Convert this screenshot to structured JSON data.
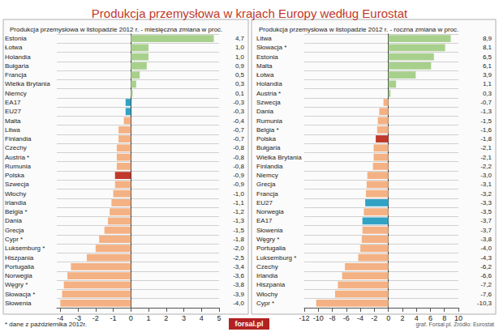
{
  "title": "Produkcja przemysłowa w krajach Europy według Eurostat",
  "annotations": [
    "* dane z października 2012r.",
    "forsal.pl",
    "graf. Forsal.pl. Źródło: Eurostat"
  ],
  "chart_data": [
    {
      "type": "bar",
      "orientation": "horizontal",
      "grid": true,
      "data_labels": true,
      "title": "Produkcja przemysłowa w listopadzie 2012 r. - miesięczna zmiana w proc.",
      "categories": [
        "Estonia",
        "Łotwa",
        "Holandia",
        "Bułgaria",
        "Francja",
        "Wielka Brytania",
        "Niemcy",
        "EA17",
        "EU27",
        "Malta",
        "Litwa",
        "Finlandia",
        "Czechy",
        "Austria *",
        "Rumunia",
        "Polska",
        "Szwecja",
        "Włochy",
        "Irlandia",
        "Belgia *",
        "Dania",
        "Grecja",
        "Cypr *",
        "Luksemburg *",
        "Hiszpania",
        "Portugalia",
        "Norwegia",
        "Węgry *",
        "Słowacja *",
        "Słowenia"
      ],
      "values": [
        4.7,
        1.0,
        1.0,
        0.9,
        0.5,
        0.3,
        0.1,
        -0.3,
        -0.3,
        -0.4,
        -0.7,
        -0.7,
        -0.8,
        -0.8,
        -0.8,
        -0.9,
        -0.9,
        -1.0,
        -1.1,
        -1.2,
        -1.3,
        -1.5,
        -1.8,
        -2.0,
        -2.5,
        -3.4,
        -3.6,
        -3.8,
        -3.9,
        -4.0
      ],
      "value_labels": [
        "4,7",
        "1,0",
        "1,0",
        "0,9",
        "0,5",
        "0,3",
        "0,1",
        "-0,3",
        "-0,3",
        "-0,4",
        "-0,7",
        "-0,7",
        "-0,8",
        "-0,8",
        "-0,8",
        "-0,9",
        "-0,9",
        "-1,0",
        "-1,1",
        "-1,2",
        "-1,3",
        "-1,5",
        "-1,8",
        "-2,0",
        "-2,5",
        "-3,4",
        "-3,6",
        "-3,8",
        "-3,9",
        "-4,0"
      ],
      "colors": [
        "#a8d08d",
        "#a8d08d",
        "#a8d08d",
        "#a8d08d",
        "#a8d08d",
        "#a8d08d",
        "#a8d08d",
        "#31a2c4",
        "#31a2c4",
        "#f4b183",
        "#f4b183",
        "#f4b183",
        "#f4b183",
        "#f4b183",
        "#f4b183",
        "#c0392b",
        "#f4b183",
        "#f4b183",
        "#f4b183",
        "#f4b183",
        "#f4b183",
        "#f4b183",
        "#f4b183",
        "#f4b183",
        "#f4b183",
        "#f4b183",
        "#f4b183",
        "#f4b183",
        "#f4b183",
        "#f4b183"
      ],
      "xlim": [
        -4.2,
        5
      ],
      "xticks": [
        -4,
        -3,
        -2,
        -1,
        0,
        1,
        2,
        3,
        4,
        5
      ]
    },
    {
      "type": "bar",
      "orientation": "horizontal",
      "grid": true,
      "data_labels": true,
      "title": "Produkcja przemysłowa w listopadzie 2012 r. - roczna zmiana w proc.",
      "categories": [
        "Litwa",
        "Słowacja *",
        "Estonia",
        "Malta",
        "Łotwa",
        "Holandia",
        "Austria *",
        "Szwecja",
        "Dania",
        "Rumunia",
        "Belgia *",
        "Polska",
        "Bułgaria",
        "Wielka Brytania",
        "Finlandia",
        "Niemcy",
        "Grecja",
        "Francja",
        "EU27",
        "Norwegia",
        "EA17",
        "Słowenia",
        "Węgry *",
        "Portugalia",
        "Luksemburg *",
        "Czechy",
        "Irlandia",
        "Hiszpania",
        "Włochy",
        "Cypr *"
      ],
      "values": [
        8.9,
        8.1,
        6.5,
        6.1,
        3.9,
        1.1,
        0.3,
        -0.7,
        -1.3,
        -1.5,
        -1.6,
        -1.8,
        -2.1,
        -2.1,
        -2.2,
        -3.0,
        -3.1,
        -3.2,
        -3.3,
        -3.5,
        -3.7,
        -3.7,
        -3.8,
        -4.0,
        -4.3,
        -6.2,
        -6.6,
        -7.2,
        -7.6,
        -10.3
      ],
      "value_labels": [
        "8,9",
        "8,1",
        "6,5",
        "6,1",
        "3,9",
        "1,1",
        "0,3",
        "-0,7",
        "-1,3",
        "-1,5",
        "-1,6",
        "-1,8",
        "-2,1",
        "-2,1",
        "-2,2",
        "-3,0",
        "-3,1",
        "-3,2",
        "-3,3",
        "-3,5",
        "-3,7",
        "-3,7",
        "-3,8",
        "-4,0",
        "-4,3",
        "-6,2",
        "-6,6",
        "-7,2",
        "-7,6",
        "-10,3"
      ],
      "colors": [
        "#a8d08d",
        "#a8d08d",
        "#a8d08d",
        "#a8d08d",
        "#a8d08d",
        "#a8d08d",
        "#a8d08d",
        "#f4b183",
        "#f4b183",
        "#f4b183",
        "#f4b183",
        "#c0392b",
        "#f4b183",
        "#f4b183",
        "#f4b183",
        "#f4b183",
        "#f4b183",
        "#f4b183",
        "#31a2c4",
        "#f4b183",
        "#31a2c4",
        "#f4b183",
        "#f4b183",
        "#f4b183",
        "#f4b183",
        "#f4b183",
        "#f4b183",
        "#f4b183",
        "#f4b183",
        "#f4b183"
      ],
      "xlim": [
        -12,
        10
      ],
      "xticks": [
        -12,
        -10,
        -8,
        -6,
        -4,
        -2,
        0,
        2,
        4,
        6,
        8,
        10
      ]
    }
  ]
}
